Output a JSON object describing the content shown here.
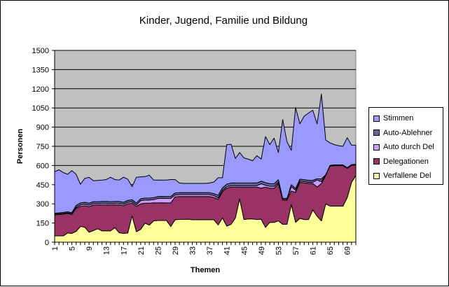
{
  "chart_data": {
    "type": "area",
    "stacked": true,
    "title": "Kinder, Jugend, Familie und Bildung",
    "xlabel": "Themen",
    "ylabel": "Personen",
    "ylim": [
      0,
      1500
    ],
    "yticks": [
      0,
      150,
      300,
      450,
      600,
      750,
      900,
      1050,
      1200,
      1350,
      1500
    ],
    "grid": true,
    "legend": "right",
    "plot_background": "#C0C0C0",
    "x": [
      1,
      2,
      3,
      4,
      5,
      6,
      7,
      8,
      9,
      10,
      11,
      12,
      13,
      14,
      15,
      16,
      17,
      18,
      19,
      20,
      21,
      22,
      23,
      24,
      25,
      26,
      27,
      28,
      29,
      30,
      31,
      32,
      33,
      34,
      35,
      36,
      37,
      38,
      39,
      40,
      41,
      42,
      43,
      44,
      45,
      46,
      47,
      48,
      49,
      50,
      51,
      52,
      53,
      54,
      55,
      56,
      57,
      58,
      59,
      60,
      61,
      62,
      63,
      64,
      65,
      66,
      67,
      68,
      69,
      70,
      71
    ],
    "xtick_labels": [
      "1",
      "5",
      "9",
      "13",
      "17",
      "21",
      "25",
      "29",
      "33",
      "37",
      "41",
      "45",
      "49",
      "53",
      "57",
      "61",
      "65",
      "69"
    ],
    "series": [
      {
        "name": "Verfallene Del",
        "color": "#FFFF99",
        "values": [
          49,
          49,
          49,
          72,
          69,
          85,
          123,
          118,
          78,
          91,
          105,
          89,
          89,
          89,
          114,
          74,
          69,
          72,
          207,
          82,
          100,
          149,
          134,
          167,
          170,
          170,
          170,
          123,
          176,
          178,
          178,
          180,
          176,
          176,
          176,
          176,
          176,
          176,
          135,
          191,
          126,
          140,
          189,
          340,
          177,
          182,
          182,
          177,
          180,
          116,
          155,
          155,
          167,
          140,
          140,
          295,
          155,
          186,
          177,
          177,
          253,
          204,
          167,
          300,
          282,
          282,
          282,
          282,
          349,
          468,
          522
        ]
      },
      {
        "name": "Delegationen",
        "color": "#993366",
        "values": [
          165,
          167,
          171,
          153,
          149,
          180,
          157,
          167,
          200,
          199,
          185,
          203,
          203,
          201,
          178,
          218,
          216,
          228,
          98,
          198,
          200,
          156,
          171,
          141,
          137,
          138,
          137,
          185,
          179,
          179,
          179,
          177,
          181,
          181,
          181,
          181,
          181,
          174,
          200,
          204,
          296,
          291,
          242,
          91,
          254,
          249,
          249,
          254,
          242,
          315,
          267,
          267,
          292,
          190,
          190,
          105,
          235,
          282,
          287,
          282,
          206,
          227,
          292,
          222,
          313,
          317,
          317,
          317,
          228,
          133,
          82
        ]
      },
      {
        "name": "Auto durch Del",
        "color": "#CC99FF",
        "values": [
          5,
          5,
          5,
          5,
          5,
          8,
          12,
          12,
          12,
          12,
          12,
          12,
          12,
          12,
          12,
          12,
          12,
          12,
          12,
          12,
          25,
          25,
          25,
          25,
          35,
          35,
          35,
          35,
          15,
          15,
          15,
          15,
          15,
          15,
          15,
          15,
          15,
          15,
          12,
          10,
          12,
          12,
          12,
          12,
          12,
          12,
          12,
          12,
          35,
          15,
          15,
          15,
          10,
          3,
          3,
          35,
          15,
          10,
          10,
          10,
          10,
          55,
          15,
          3,
          3,
          3,
          3,
          3,
          3,
          3,
          3
        ]
      },
      {
        "name": "Auto-Ablehner",
        "color": "#666699",
        "values": [
          8,
          8,
          8,
          8,
          8,
          15,
          15,
          15,
          15,
          15,
          15,
          15,
          15,
          15,
          15,
          15,
          15,
          15,
          15,
          15,
          15,
          15,
          15,
          15,
          15,
          15,
          15,
          15,
          15,
          15,
          15,
          15,
          15,
          15,
          15,
          15,
          15,
          15,
          20,
          20,
          20,
          20,
          20,
          20,
          20,
          20,
          20,
          20,
          20,
          20,
          20,
          20,
          20,
          10,
          10,
          15,
          15,
          15,
          15,
          15,
          15,
          10,
          20,
          3,
          3,
          3,
          3,
          3,
          3,
          3,
          3
        ]
      },
      {
        "name": "Stimmen",
        "color": "#9999FF",
        "values": [
          324,
          337,
          312,
          293,
          329,
          243,
          146,
          187,
          203,
          164,
          166,
          167,
          171,
          191,
          171,
          167,
          196,
          166,
          103,
          201,
          171,
          168,
          179,
          138,
          129,
          128,
          129,
          132,
          105,
          76,
          73,
          73,
          73,
          73,
          73,
          73,
          76,
          90,
          137,
          79,
          309,
          303,
          192,
          238,
          196,
          187,
          174,
          214,
          173,
          360,
          306,
          357,
          212,
          616,
          443,
          269,
          634,
          433,
          497,
          526,
          548,
          430,
          665,
          271,
          176,
          158,
          150,
          145,
          234,
          152,
          149
        ]
      }
    ]
  }
}
